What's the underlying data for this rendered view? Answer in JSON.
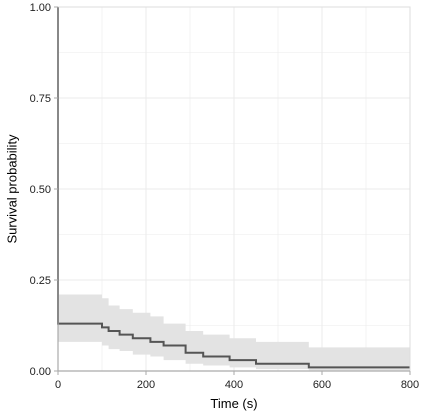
{
  "chart_data": {
    "type": "line",
    "subtype": "kaplan-meier survival curve with confidence band",
    "xlabel": "Time (s)",
    "ylabel": "Survival probability",
    "xlim": [
      0,
      800
    ],
    "ylim": [
      0,
      1
    ],
    "x_ticks": [
      0,
      200,
      400,
      600,
      800
    ],
    "x_tick_labels": [
      "0",
      "200",
      "400",
      "600",
      "800"
    ],
    "y_ticks": [
      0,
      0.25,
      0.5,
      0.75,
      1
    ],
    "y_tick_labels": [
      "0.00",
      "0.25",
      "0.50",
      "0.75",
      "1.00"
    ],
    "grid": true,
    "colors": {
      "curve": "#555555",
      "band": "#e3e3e3",
      "grid": "#ebebeb",
      "axis": "#aaaaaa"
    },
    "series": [
      {
        "x": [
          0,
          0,
          100,
          115,
          140,
          170,
          210,
          240,
          290,
          330,
          390,
          450,
          570,
          800
        ],
        "y": [
          1.0,
          0.13,
          0.12,
          0.11,
          0.1,
          0.09,
          0.08,
          0.07,
          0.05,
          0.04,
          0.03,
          0.02,
          0.01,
          0.01
        ],
        "lower": [
          1.0,
          0.08,
          0.07,
          0.06,
          0.055,
          0.045,
          0.04,
          0.03,
          0.02,
          0.015,
          0.01,
          0.005,
          0.002,
          0.002
        ],
        "upper": [
          1.0,
          0.21,
          0.2,
          0.18,
          0.17,
          0.16,
          0.15,
          0.13,
          0.11,
          0.1,
          0.09,
          0.08,
          0.065,
          0.065
        ]
      }
    ]
  }
}
